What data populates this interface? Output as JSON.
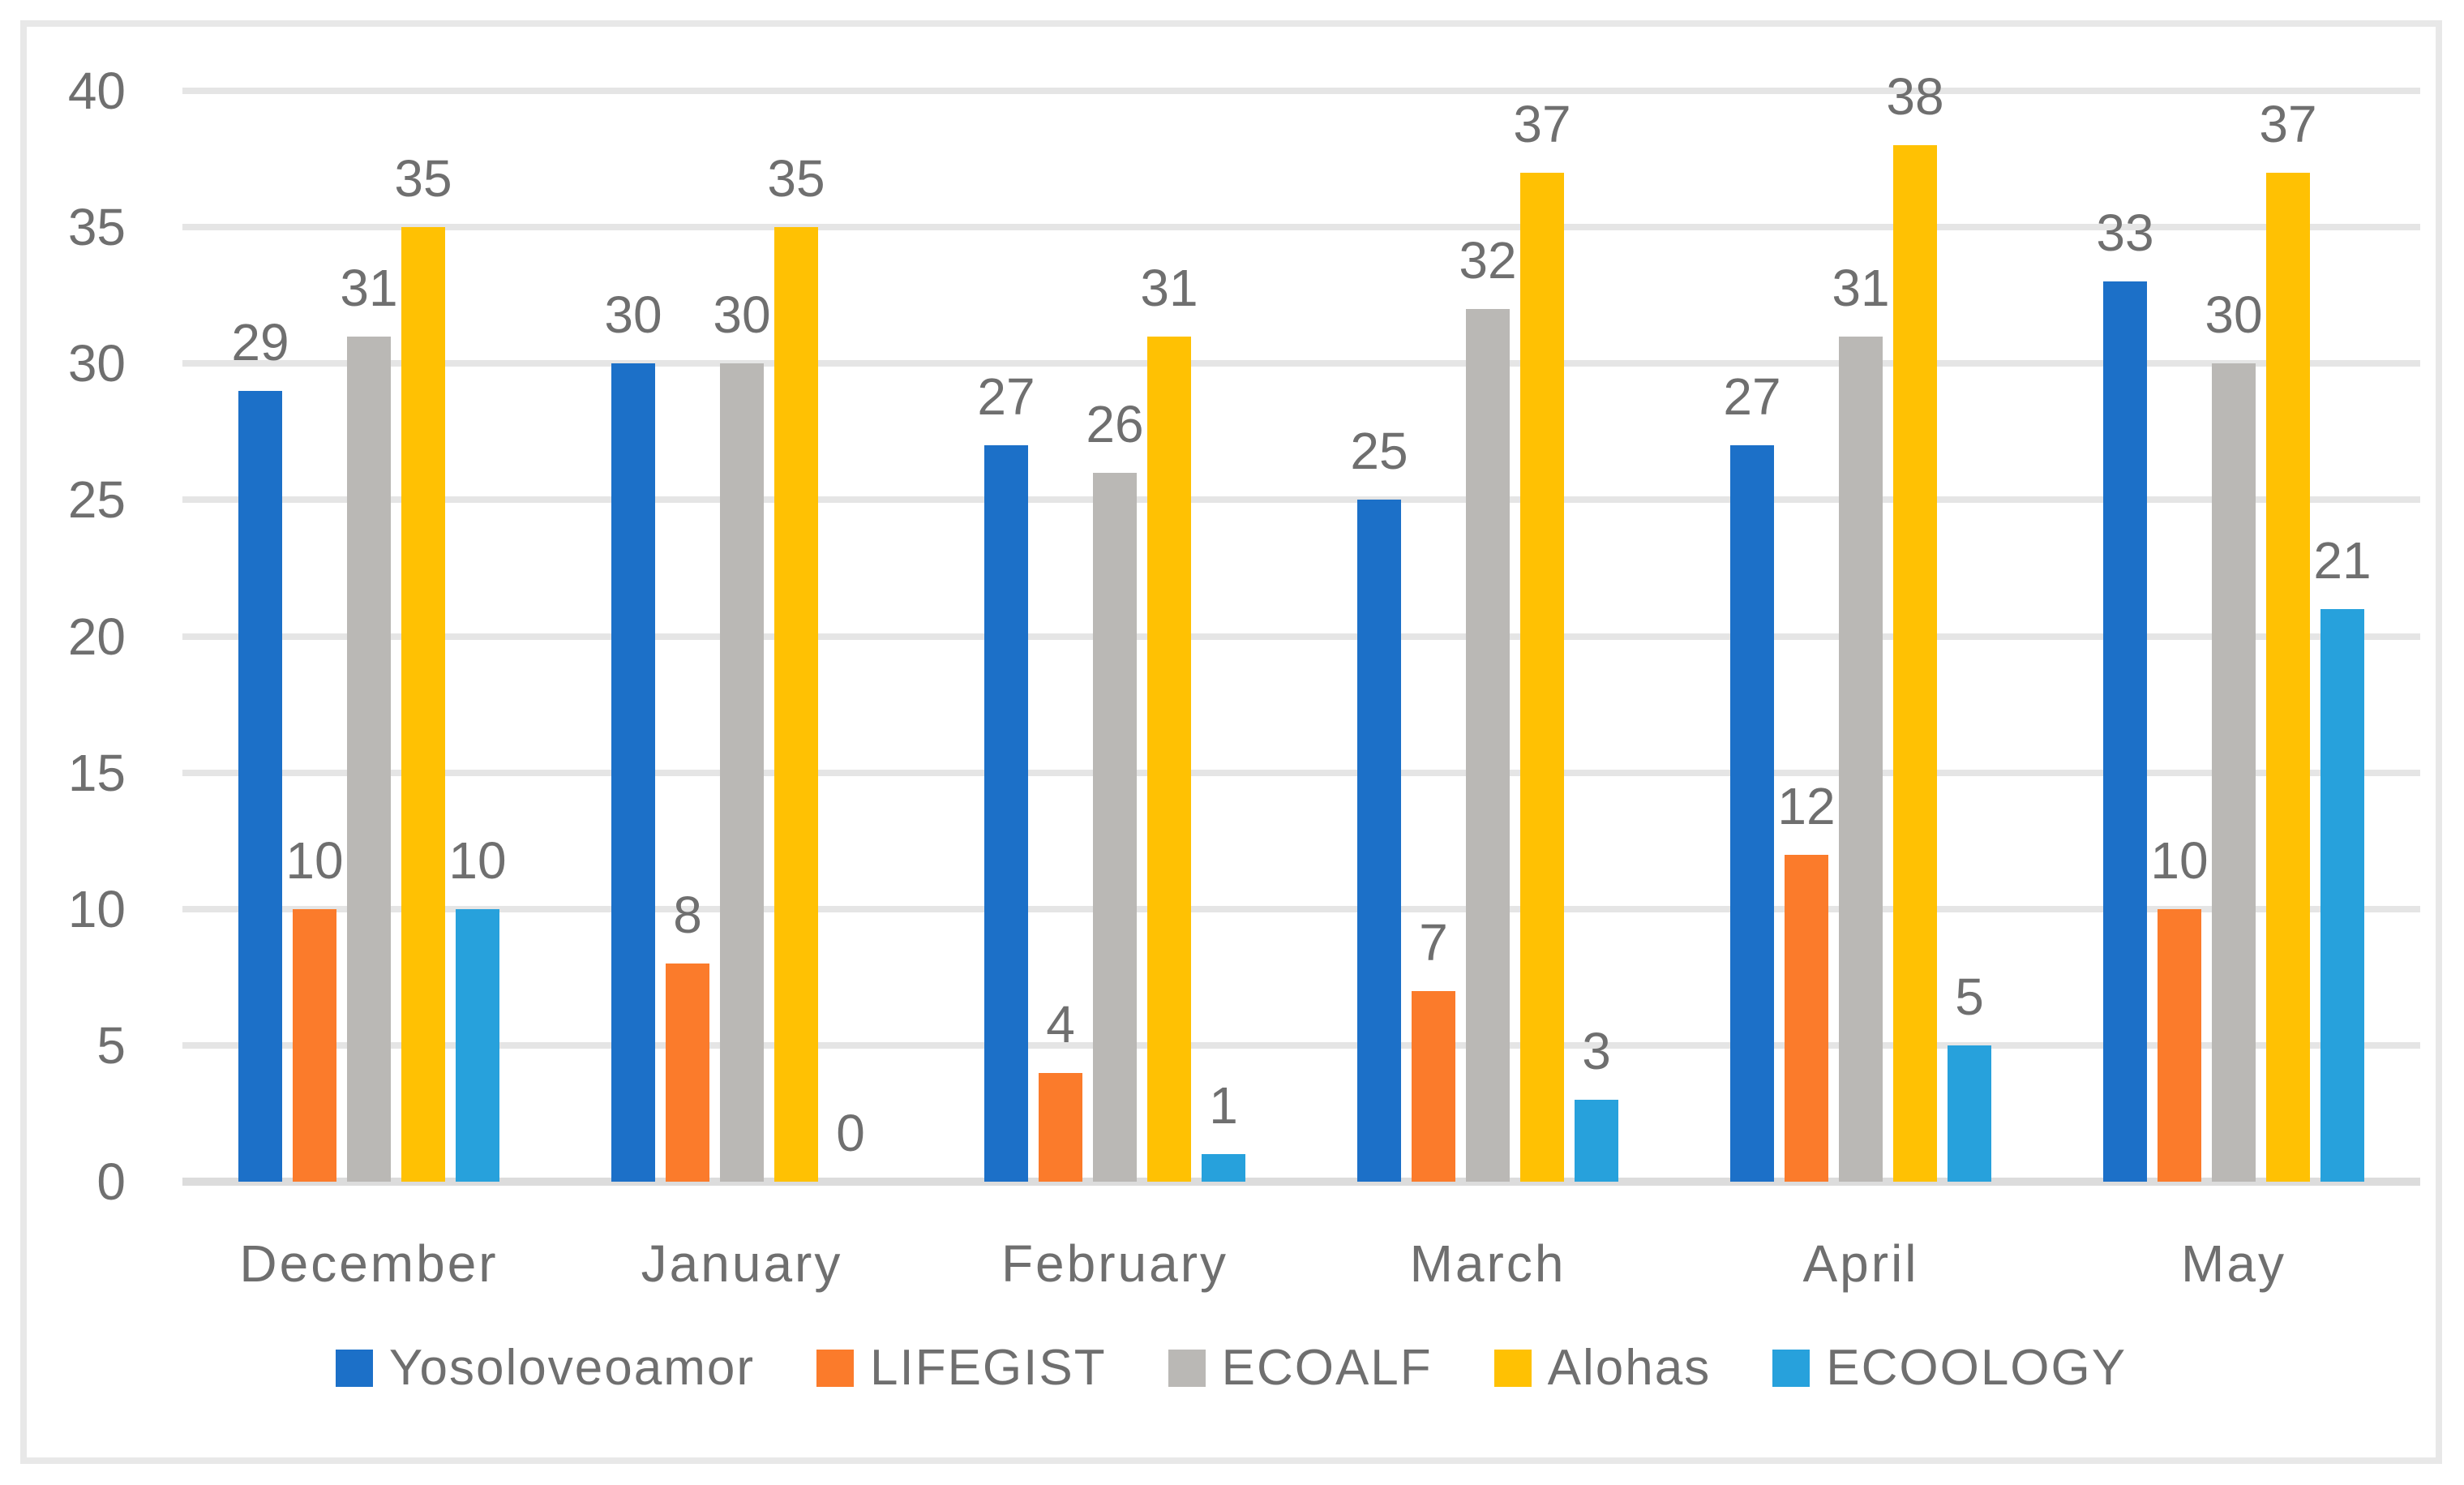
{
  "chart_data": {
    "type": "bar",
    "title": "",
    "xlabel": "",
    "ylabel": "",
    "categories": [
      "December",
      "January",
      "February",
      "March",
      "April",
      "May"
    ],
    "series": [
      {
        "name": "Yosoloveoamor",
        "color": "#1C70C8",
        "values": [
          29,
          30,
          27,
          25,
          27,
          33
        ]
      },
      {
        "name": "LIFEGIST",
        "color": "#FB7B2B",
        "values": [
          10,
          8,
          4,
          7,
          12,
          10
        ]
      },
      {
        "name": "ECOALF",
        "color": "#BAB8B5",
        "values": [
          31,
          30,
          26,
          32,
          31,
          30
        ]
      },
      {
        "name": "Alohas",
        "color": "#FFC103",
        "values": [
          35,
          35,
          31,
          37,
          38,
          37
        ]
      },
      {
        "name": "ECOOLOGY",
        "color": "#27A1DC",
        "values": [
          10,
          0,
          1,
          3,
          5,
          21
        ]
      }
    ],
    "yticks": [
      0,
      5,
      10,
      15,
      20,
      25,
      30,
      35,
      40
    ],
    "ylim": [
      0,
      40
    ],
    "grid": true,
    "gridline_color": "#E5E5E5",
    "axis_text_color": "#6F6F6F",
    "data_labels": true,
    "legend_position": "bottom"
  }
}
